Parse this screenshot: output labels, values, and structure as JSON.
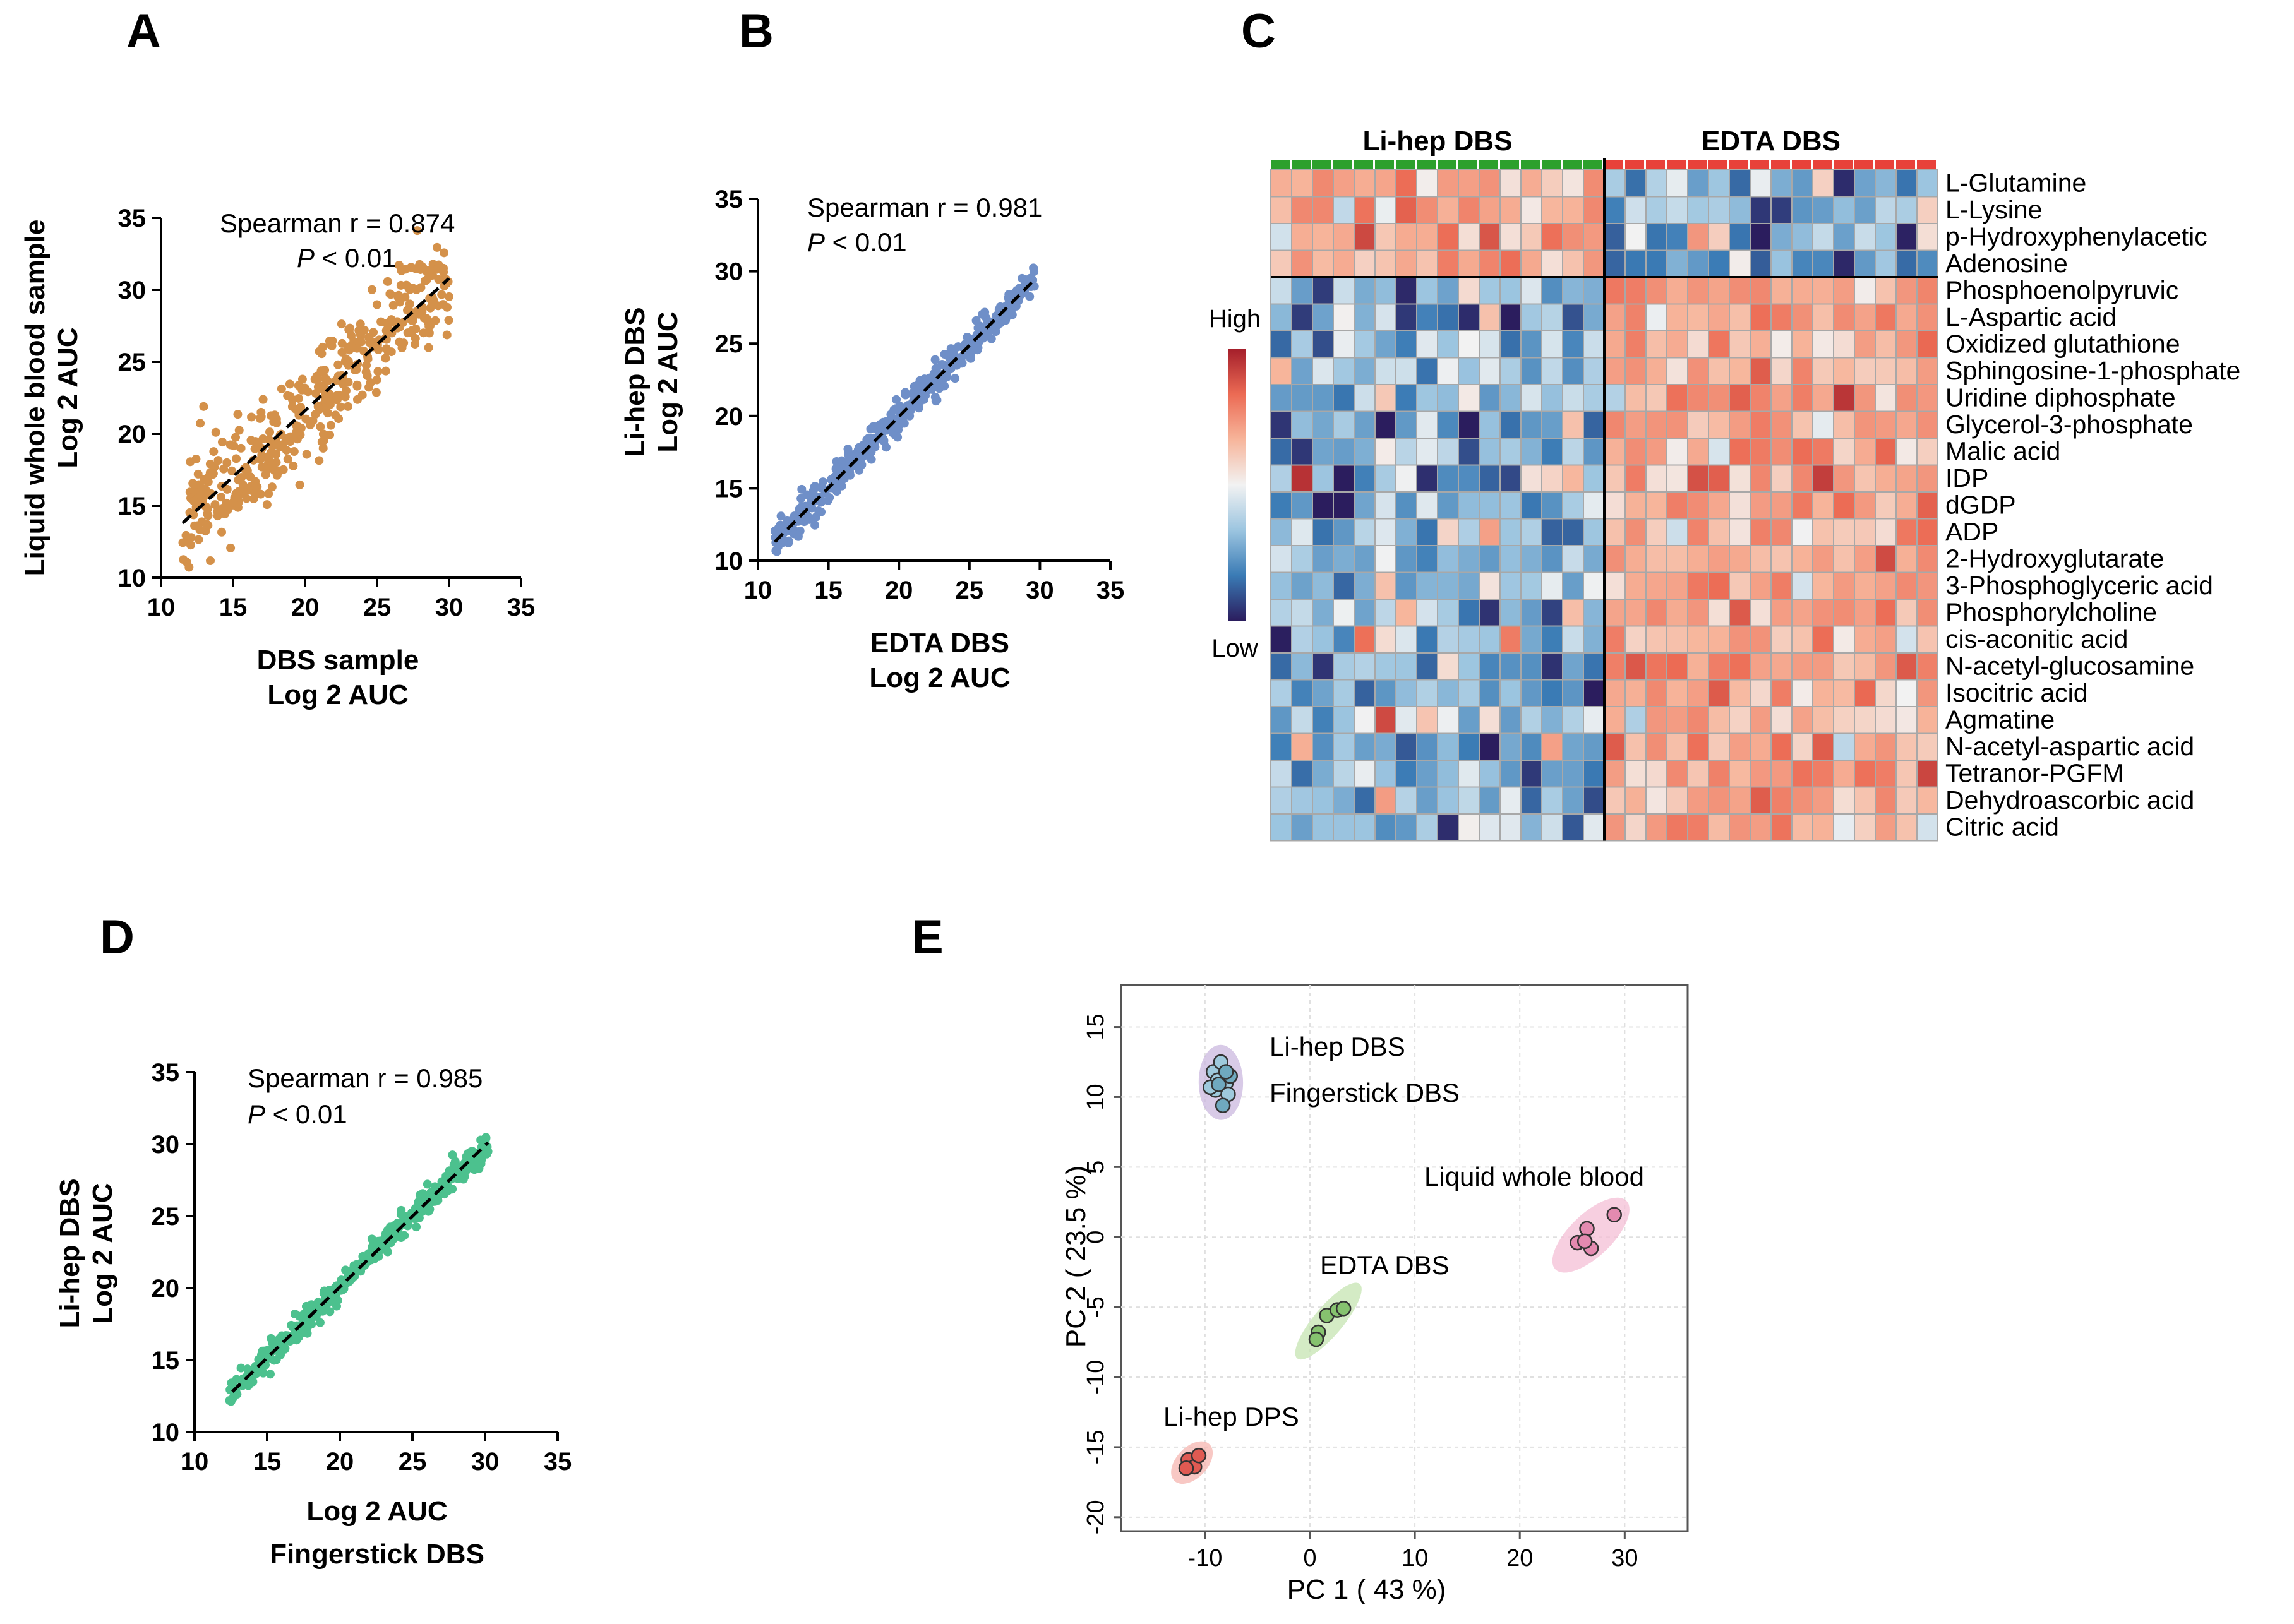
{
  "panel_labels": [
    "A",
    "B",
    "C",
    "D",
    "E"
  ],
  "chart_data": [
    {
      "panel": "A",
      "type": "scatter",
      "xlabel": "DBS sample",
      "xlabel2": "Log 2 AUC",
      "ylabel": "Liquid whole blood sample",
      "ylabel2": "Log 2 AUC",
      "xlim": [
        10,
        35
      ],
      "ylim": [
        10,
        35
      ],
      "xticks": [
        10,
        15,
        20,
        25,
        30,
        35
      ],
      "yticks": [
        10,
        15,
        20,
        25,
        30,
        35
      ],
      "annotation_line1": "Spearman r = 0.874",
      "p_symbol": "P",
      "p_rest": " < 0.01",
      "color": "#d4914a",
      "fit": [
        [
          11.5,
          13.8
        ],
        [
          30,
          30.8
        ]
      ],
      "points": {
        "count": 420,
        "x_range": [
          11.5,
          30
        ],
        "noise_sd": 1.9,
        "seed": 11
      }
    },
    {
      "panel": "B",
      "type": "scatter",
      "xlabel": "EDTA DBS",
      "xlabel2": "Log 2 AUC",
      "ylabel": "Li-hep DBS",
      "ylabel2": "Log 2 AUC",
      "xlim": [
        10,
        35
      ],
      "ylim": [
        10,
        35
      ],
      "xticks": [
        10,
        15,
        20,
        25,
        30,
        35
      ],
      "yticks": [
        10,
        15,
        20,
        25,
        30,
        35
      ],
      "annotation_line1": "Spearman r = 0.981",
      "p_symbol": "P",
      "p_rest": " < 0.01",
      "color": "#6f8fc8",
      "fit": [
        [
          11.2,
          11.3
        ],
        [
          29.7,
          29.5
        ]
      ],
      "points": {
        "count": 420,
        "x_range": [
          11.2,
          29.7
        ],
        "noise_sd": 0.55,
        "seed": 22
      }
    },
    {
      "panel": "C",
      "type": "heatmap",
      "groups": [
        "Li-hep DBS",
        "EDTA DBS"
      ],
      "group_colors": [
        "#2ca02c",
        "#e8413a"
      ],
      "columns_per_group": [
        16,
        16
      ],
      "rows": [
        "L-Glutamine",
        "L-Lysine",
        "p-Hydroxyphenylacetic",
        "Adenosine",
        "Phosphoenolpyruvic",
        "L-Aspartic acid",
        "Oxidized glutathione",
        "Sphingosine-1-phosphate",
        "Uridine diphosphate",
        "Glycerol-3-phosphate",
        "Malic acid",
        "IDP",
        "dGDP",
        "ADP",
        "2-Hydroxyglutarate",
        "3-Phosphoglyceric acid",
        "Phosphorylcholine",
        "cis-aconitic acid",
        "N-acetyl-glucosamine",
        "Isocitric acid",
        "Agmatine",
        "N-acetyl-aspartic acid",
        "Tetranor-PGFM",
        "Dehydroascorbic acid",
        "Citric acid"
      ],
      "rows_higher_in_lihep": 4,
      "legend_high": "High",
      "legend_low": "Low",
      "colormap": [
        "#2b1d5e",
        "#3a7bb5",
        "#9cc5e0",
        "#f2f2f2",
        "#f7b59b",
        "#ec6b54",
        "#a51f2b"
      ],
      "seed": 33
    },
    {
      "panel": "D",
      "type": "scatter",
      "xlabel": "Log 2 AUC",
      "xlabel2": "Fingerstick DBS",
      "ylabel": "Li-hep DBS",
      "ylabel2": "Log 2 AUC",
      "xlim": [
        10,
        35
      ],
      "ylim": [
        10,
        35
      ],
      "xticks": [
        10,
        15,
        20,
        25,
        30,
        35
      ],
      "yticks": [
        10,
        15,
        20,
        25,
        30,
        35
      ],
      "annotation_line1": "Spearman r = 0.985",
      "p_symbol": "P",
      "p_rest": " < 0.01",
      "color": "#4cc18e",
      "fit": [
        [
          12.6,
          12.8
        ],
        [
          30.2,
          30.1
        ]
      ],
      "points": {
        "count": 460,
        "x_range": [
          12.4,
          30.2
        ],
        "noise_sd": 0.45,
        "seed": 44
      }
    },
    {
      "panel": "E",
      "type": "scatter",
      "xlabel": "PC 1 ( 43 %)",
      "ylabel": "PC 2 ( 23.5 %)",
      "xlim": [
        -18,
        36
      ],
      "ylim": [
        -21,
        18
      ],
      "xticks": [
        -10,
        0,
        10,
        20,
        30
      ],
      "yticks": [
        -20,
        -15,
        -10,
        -5,
        0,
        5,
        10,
        15
      ],
      "groups": [
        {
          "name": "Li-hep DBS",
          "color": "#9ec9dc",
          "ellipse": "#cbb8df",
          "points": [
            [
              -9.2,
              11.8
            ],
            [
              -8.5,
              12.5
            ],
            [
              -8.8,
              11.2
            ],
            [
              -9.0,
              10.5
            ],
            [
              -8.0,
              11.0
            ],
            [
              -7.8,
              10.2
            ],
            [
              -9.5,
              10.7
            ]
          ]
        },
        {
          "name": "Fingerstick DBS",
          "color": "#6fa9bf",
          "ellipse": "#cbb8df",
          "points": [
            [
              -8.3,
              9.4
            ],
            [
              -7.6,
              11.5
            ],
            [
              -8.7,
              10.9
            ],
            [
              -8.0,
              11.8
            ]
          ]
        },
        {
          "name": "Liquid whole blood",
          "color": "#e48ab0",
          "ellipse": "#f4bfd6",
          "points": [
            [
              29.0,
              1.6
            ],
            [
              26.4,
              0.6
            ],
            [
              25.5,
              -0.4
            ],
            [
              26.8,
              -0.8
            ],
            [
              26.2,
              -0.3
            ]
          ]
        },
        {
          "name": "EDTA DBS",
          "color": "#86c26f",
          "ellipse": "#c6e4b2",
          "points": [
            [
              1.6,
              -5.6
            ],
            [
              2.6,
              -5.2
            ],
            [
              3.2,
              -5.1
            ],
            [
              0.8,
              -6.8
            ],
            [
              0.6,
              -7.3
            ]
          ]
        },
        {
          "name": "Li-hep DPS",
          "color": "#e05a52",
          "ellipse": "#f5b5b0",
          "points": [
            [
              -11.6,
              -15.9
            ],
            [
              -11.0,
              -16.4
            ],
            [
              -10.6,
              -15.6
            ],
            [
              -11.8,
              -16.5
            ]
          ]
        }
      ]
    }
  ]
}
